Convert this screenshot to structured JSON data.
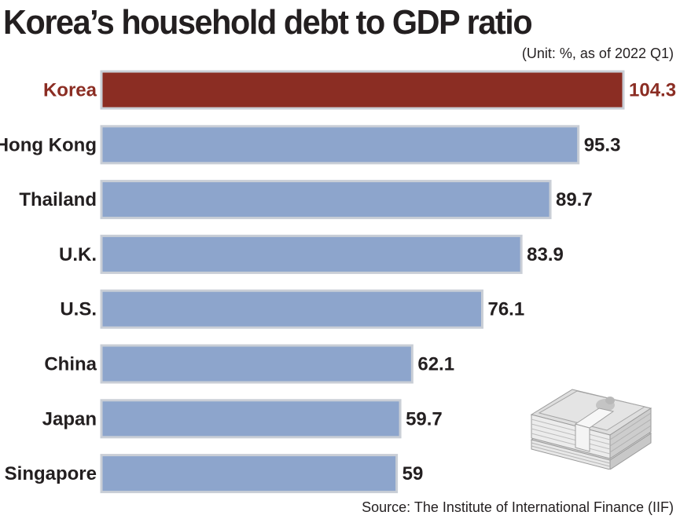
{
  "chart_data": {
    "type": "bar",
    "orientation": "horizontal",
    "title": "Korea’s household debt to GDP ratio",
    "subtitle": "(Unit: %, as of 2022 Q1)",
    "source": "Source: The Institute of International Finance (IIF)",
    "categories": [
      "Korea",
      "Hong Kong",
      "Thailand",
      "U.K.",
      "U.S.",
      "China",
      "Japan",
      "Singapore"
    ],
    "values": [
      104.3,
      95.3,
      89.7,
      83.9,
      76.1,
      62.1,
      59.7,
      59
    ],
    "value_labels": [
      "104.3",
      "95.3",
      "89.7",
      "83.9",
      "76.1",
      "62.1",
      "59.7",
      "59"
    ],
    "highlight": "Korea",
    "xlim": [
      0,
      104.3
    ],
    "colors": {
      "bar": "#8da5cc",
      "bar_edge": "#c9ced6",
      "highlight_bar": "#8b2d23",
      "highlight_text": "#8b2d23",
      "text": "#231f20"
    }
  },
  "decoration": {
    "icon": "money-stack-icon"
  }
}
